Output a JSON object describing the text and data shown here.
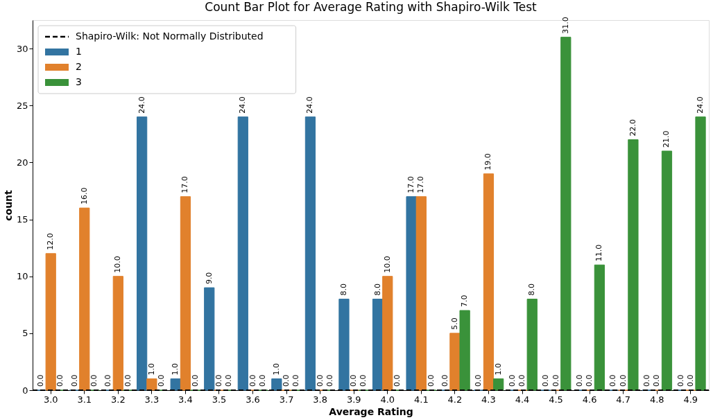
{
  "chart_data": {
    "type": "bar",
    "title": "Count Bar Plot for Average Rating with Shapiro-Wilk Test",
    "xlabel": "Average Rating",
    "ylabel": "count",
    "categories": [
      "3.0",
      "3.1",
      "3.2",
      "3.3",
      "3.4",
      "3.5",
      "3.6",
      "3.7",
      "3.8",
      "3.9",
      "4.0",
      "4.1",
      "4.2",
      "4.3",
      "4.4",
      "4.5",
      "4.6",
      "4.7",
      "4.8",
      "4.9"
    ],
    "series": [
      {
        "name": "1",
        "color": "#3274a1",
        "values": [
          0,
          0,
          0,
          24,
          1,
          9,
          24,
          1,
          24,
          8,
          8,
          17,
          0,
          0,
          0,
          0,
          0,
          0,
          0,
          0
        ],
        "value_labels": [
          "0.0",
          "0.0",
          "0.0",
          "24.0",
          "1.0",
          "9.0",
          "24.0",
          "1.0",
          "24.0",
          "8.0",
          "8.0",
          "17.0",
          "0.0",
          "0.0",
          "0.0",
          "0.0",
          "0.0",
          "0.0",
          "0.0",
          "0.0"
        ]
      },
      {
        "name": "2",
        "color": "#e1812c",
        "values": [
          12,
          16,
          10,
          1,
          17,
          0,
          0,
          0,
          0,
          0,
          10,
          17,
          5,
          19,
          0,
          0,
          0,
          0,
          0,
          0
        ],
        "value_labels": [
          "12.0",
          "16.0",
          "10.0",
          "1.0",
          "17.0",
          "0.0",
          "0.0",
          "0.0",
          "0.0",
          "0.0",
          "10.0",
          "17.0",
          "5.0",
          "19.0",
          "0.0",
          "0.0",
          "0.0",
          "0.0",
          "0.0",
          "0.0"
        ]
      },
      {
        "name": "3",
        "color": "#3a923a",
        "values": [
          0,
          0,
          0,
          0,
          0,
          0,
          0,
          0,
          0,
          0,
          0,
          0,
          7,
          1,
          8,
          31,
          11,
          22,
          21,
          24
        ],
        "value_labels": [
          "0.0",
          "0.0",
          "0.0",
          "0.0",
          "0.0",
          "0.0",
          "0.0",
          "0.0",
          "0.0",
          "0.0",
          "0.0",
          "0.0",
          "7.0",
          "1.0",
          "8.0",
          "31.0",
          "11.0",
          "22.0",
          "21.0",
          "24.0"
        ]
      }
    ],
    "ylim": [
      0,
      32.5
    ],
    "yticks": [
      0,
      5,
      10,
      15,
      20,
      25,
      30
    ],
    "ref_lines": [
      {
        "axis": "y",
        "value": 0,
        "label": "Shapiro-Wilk: Not Normally Distributed",
        "color": "#000000",
        "line_style": "dashed"
      }
    ],
    "legend": "top left",
    "grid": false
  }
}
